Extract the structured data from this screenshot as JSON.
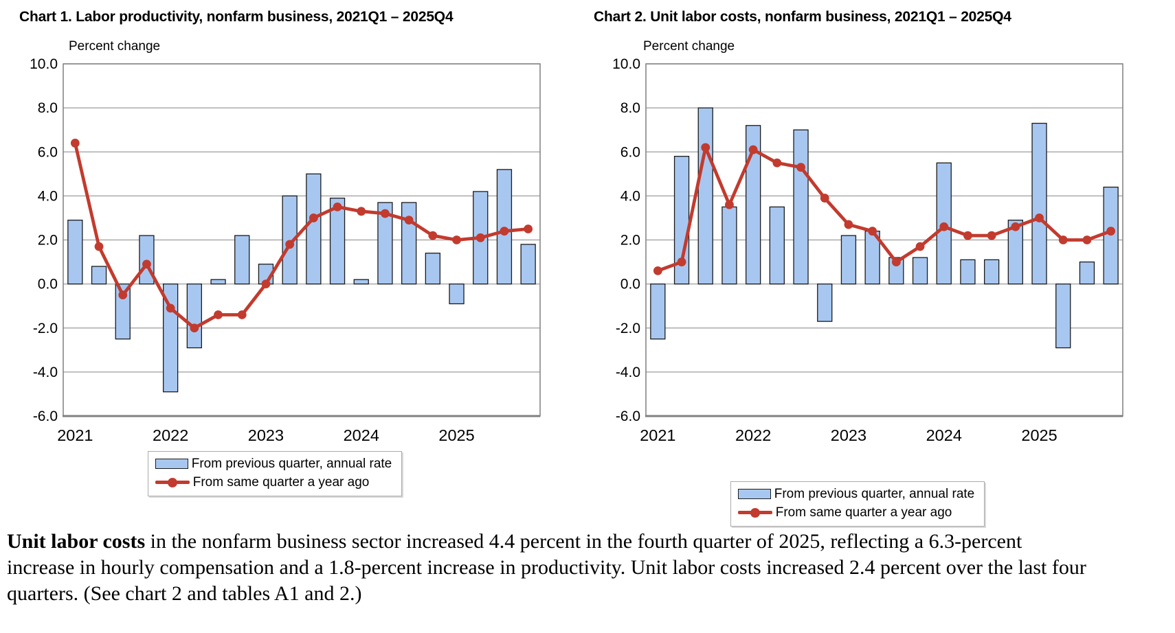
{
  "colors": {
    "bar_fill": "#a8c7f0",
    "bar_stroke": "#1b1b1b",
    "line": "#c23b2e",
    "grid": "#9c9c9c",
    "plot_border": "#7f7f7f",
    "text": "#000000"
  },
  "chart_data": [
    {
      "type": "bar",
      "title": "Chart 1. Labor productivity, nonfarm business, 2021Q1 – 2025Q4",
      "ylabel": "Percent change",
      "xlabel": "",
      "ylim": [
        -6.0,
        10.0
      ],
      "ytick_step": 2.0,
      "yticks": [
        "10.0",
        "8.0",
        "6.0",
        "4.0",
        "2.0",
        "0.0",
        "-2.0",
        "-4.0",
        "-6.0"
      ],
      "grid": true,
      "legend_position": "bottom",
      "categories": [
        "2021 Q1",
        "2021 Q2",
        "2021 Q3",
        "2021 Q4",
        "2022 Q1",
        "2022 Q2",
        "2022 Q3",
        "2022 Q4",
        "2023 Q1",
        "2023 Q2",
        "2023 Q3",
        "2023 Q4",
        "2024 Q1",
        "2024 Q2",
        "2024 Q3",
        "2024 Q4",
        "2025 Q1",
        "2025 Q2",
        "2025 Q3",
        "2025 Q4"
      ],
      "x_tick_labels": [
        "2021",
        "2022",
        "2023",
        "2024",
        "2025"
      ],
      "series": [
        {
          "name": "From previous quarter, annual rate",
          "type": "bar",
          "values": [
            2.9,
            0.8,
            -2.5,
            2.2,
            -4.9,
            -2.9,
            0.2,
            2.2,
            0.9,
            4.0,
            5.0,
            3.9,
            0.2,
            3.7,
            3.7,
            1.4,
            -0.9,
            4.2,
            5.2,
            1.8
          ]
        },
        {
          "name": "From same quarter a year ago",
          "type": "line",
          "values": [
            6.4,
            1.7,
            -0.5,
            0.9,
            -1.1,
            -2.0,
            -1.4,
            -1.4,
            0.0,
            1.8,
            3.0,
            3.5,
            3.3,
            3.2,
            2.9,
            2.2,
            2.0,
            2.1,
            2.4,
            2.5
          ]
        }
      ]
    },
    {
      "type": "bar",
      "title": "Chart 2. Unit labor costs, nonfarm business, 2021Q1 – 2025Q4",
      "ylabel": "Percent change",
      "xlabel": "",
      "ylim": [
        -6.0,
        10.0
      ],
      "ytick_step": 2.0,
      "yticks": [
        "10.0",
        "8.0",
        "6.0",
        "4.0",
        "2.0",
        "0.0",
        "-2.0",
        "-4.0",
        "-6.0"
      ],
      "grid": true,
      "legend_position": "bottom",
      "categories": [
        "2021 Q1",
        "2021 Q2",
        "2021 Q3",
        "2021 Q4",
        "2022 Q1",
        "2022 Q2",
        "2022 Q3",
        "2022 Q4",
        "2023 Q1",
        "2023 Q2",
        "2023 Q3",
        "2023 Q4",
        "2024 Q1",
        "2024 Q2",
        "2024 Q3",
        "2024 Q4",
        "2025 Q1",
        "2025 Q2",
        "2025 Q3",
        "2025 Q4"
      ],
      "x_tick_labels": [
        "2021",
        "2022",
        "2023",
        "2024",
        "2025"
      ],
      "series": [
        {
          "name": "From previous quarter, annual rate",
          "type": "bar",
          "values": [
            -2.5,
            5.8,
            8.0,
            3.5,
            7.2,
            3.5,
            7.0,
            -1.7,
            2.2,
            2.4,
            1.2,
            1.2,
            5.5,
            1.1,
            1.1,
            2.9,
            7.3,
            -2.9,
            1.0,
            4.4
          ]
        },
        {
          "name": "From same quarter a year ago",
          "type": "line",
          "values": [
            0.6,
            1.0,
            6.2,
            3.6,
            6.1,
            5.5,
            5.3,
            3.9,
            2.7,
            2.4,
            1.0,
            1.7,
            2.6,
            2.2,
            2.2,
            2.6,
            3.0,
            2.0,
            2.0,
            2.4
          ]
        }
      ]
    }
  ],
  "paragraph": {
    "lead": "Unit labor costs",
    "body": " in the nonfarm business sector increased 4.4 percent in the fourth quarter of 2025, reflecting a 6.3-percent increase in hourly compensation and a 1.8-percent increase in productivity. Unit labor costs increased 2.4 percent over the last four quarters. (See chart 2 and tables A1 and 2.)"
  }
}
